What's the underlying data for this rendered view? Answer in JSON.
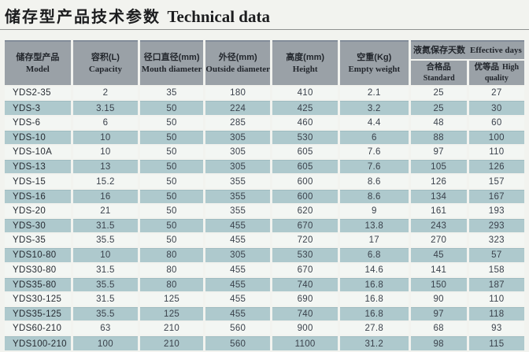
{
  "title": {
    "zh": "储存型产品技术参数",
    "en": "Technical data"
  },
  "colors": {
    "page_bg": "#f2f3ef",
    "header_bg": "#9aa1a7",
    "row_teal": "#aec9cd",
    "row_light": "#f3f6f3",
    "text_dark": "#272c33"
  },
  "table": {
    "headers": [
      {
        "zh": "储存型产品",
        "en": "Model"
      },
      {
        "zh": "容积(L)",
        "en": "Capacity"
      },
      {
        "zh": "径口直径(mm)",
        "en": "Mouth diameter"
      },
      {
        "zh": "外径(mm)",
        "en": "Outside diameter"
      },
      {
        "zh": "高度(mm)",
        "en": "Height"
      },
      {
        "zh": "空重(Kg)",
        "en": "Empty weight"
      }
    ],
    "effective_days": {
      "zh": "液氮保存天数",
      "en": "Effective days",
      "sub": [
        {
          "zh": "合格品",
          "en": "Standard"
        },
        {
          "zh": "优等品",
          "en": "High quality"
        }
      ]
    },
    "rows": [
      [
        "YDS2-35",
        "2",
        "35",
        "180",
        "410",
        "2.1",
        "25",
        "27"
      ],
      [
        "YDS-3",
        "3.15",
        "50",
        "224",
        "425",
        "3.2",
        "25",
        "30"
      ],
      [
        "YDS-6",
        "6",
        "50",
        "285",
        "460",
        "4.4",
        "48",
        "60"
      ],
      [
        "YDS-10",
        "10",
        "50",
        "305",
        "530",
        "6",
        "88",
        "100"
      ],
      [
        "YDS-10A",
        "10",
        "50",
        "305",
        "605",
        "7.6",
        "97",
        "110"
      ],
      [
        "YDS-13",
        "13",
        "50",
        "305",
        "605",
        "7.6",
        "105",
        "126"
      ],
      [
        "YDS-15",
        "15.2",
        "50",
        "355",
        "600",
        "8.6",
        "126",
        "157"
      ],
      [
        "YDS-16",
        "16",
        "50",
        "355",
        "600",
        "8.6",
        "134",
        "167"
      ],
      [
        "YDS-20",
        "21",
        "50",
        "355",
        "620",
        "9",
        "161",
        "193"
      ],
      [
        "YDS-30",
        "31.5",
        "50",
        "455",
        "670",
        "13.8",
        "243",
        "293"
      ],
      [
        "YDS-35",
        "35.5",
        "50",
        "455",
        "720",
        "17",
        "270",
        "323"
      ],
      [
        "YDS10-80",
        "10",
        "80",
        "305",
        "530",
        "6.8",
        "45",
        "57"
      ],
      [
        "YDS30-80",
        "31.5",
        "80",
        "455",
        "670",
        "14.6",
        "141",
        "158"
      ],
      [
        "YDS35-80",
        "35.5",
        "80",
        "455",
        "740",
        "16.8",
        "150",
        "187"
      ],
      [
        "YDS30-125",
        "31.5",
        "125",
        "455",
        "690",
        "16.8",
        "90",
        "110"
      ],
      [
        "YDS35-125",
        "35.5",
        "125",
        "455",
        "740",
        "16.8",
        "97",
        "118"
      ],
      [
        "YDS60-210",
        "63",
        "210",
        "560",
        "900",
        "27.8",
        "68",
        "93"
      ],
      [
        "YDS100-210",
        "100",
        "210",
        "560",
        "1100",
        "31.2",
        "98",
        "115"
      ]
    ]
  }
}
